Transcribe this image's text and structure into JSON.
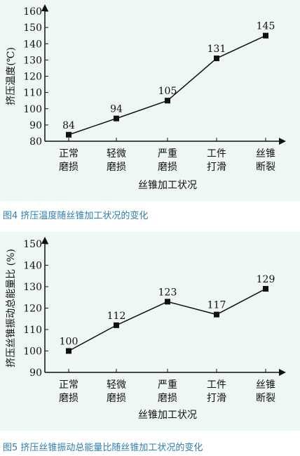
{
  "captions": {
    "fig4": "图4  挤压温度随丝锥加工状况的变化",
    "fig5": "图5  挤压丝锥振动总能量比随丝锥加工状况的变化"
  },
  "chart_data": [
    {
      "type": "line",
      "title": "",
      "xlabel": "丝锥加工状况",
      "ylabel": "挤压温度(℃)",
      "categories": [
        [
          "正常",
          "磨损"
        ],
        [
          "轻微",
          "磨损"
        ],
        [
          "严重",
          "磨损"
        ],
        [
          "工件",
          "打滑"
        ],
        [
          "丝锥",
          "断裂"
        ]
      ],
      "values": [
        84,
        94,
        105,
        131,
        145
      ],
      "ylim": [
        80,
        160
      ],
      "yticks": [
        80,
        90,
        100,
        110,
        120,
        130,
        140,
        150,
        160
      ],
      "grid": false,
      "marker": "square",
      "colors": {
        "line": "#111111",
        "panel": "#eef6f6"
      }
    },
    {
      "type": "line",
      "title": "",
      "xlabel": "丝锥加工状况",
      "ylabel": "挤压丝锥振动总能量比 (%)",
      "categories": [
        [
          "正常",
          "磨损"
        ],
        [
          "轻微",
          "磨损"
        ],
        [
          "严重",
          "磨损"
        ],
        [
          "工件",
          "打滑"
        ],
        [
          "丝锥",
          "断裂"
        ]
      ],
      "values": [
        100,
        112,
        123,
        117,
        129
      ],
      "ylim": [
        90,
        150
      ],
      "yticks": [
        90,
        100,
        110,
        120,
        130,
        140,
        150
      ],
      "grid": false,
      "marker": "square",
      "colors": {
        "line": "#111111",
        "panel": "#eef6f6"
      }
    }
  ]
}
